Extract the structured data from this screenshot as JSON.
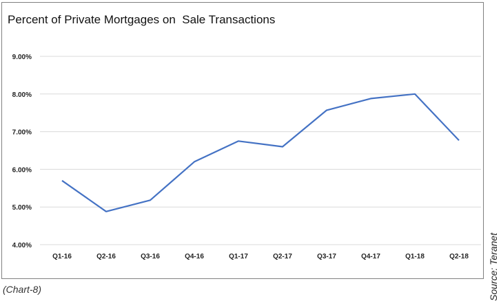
{
  "chart_data": {
    "type": "line",
    "title": "Percent of Private Mortgages on  Sale Transactions",
    "categories": [
      "Q1-16",
      "Q2-16",
      "Q3-16",
      "Q4-16",
      "Q1-17",
      "Q2-17",
      "Q3-17",
      "Q4-17",
      "Q1-18",
      "Q2-18"
    ],
    "series": [
      {
        "values": [
          5.7,
          4.88,
          5.18,
          6.2,
          6.75,
          6.6,
          7.57,
          7.88,
          8.0,
          6.77
        ]
      }
    ],
    "y_ticks": [
      "4.00%",
      "5.00%",
      "6.00%",
      "7.00%",
      "8.00%",
      "9.00%"
    ],
    "ylim": [
      4,
      9
    ],
    "grid": true,
    "line_color": "#4472c4"
  },
  "source": "Source: Teranet",
  "caption": "(Chart-8)"
}
